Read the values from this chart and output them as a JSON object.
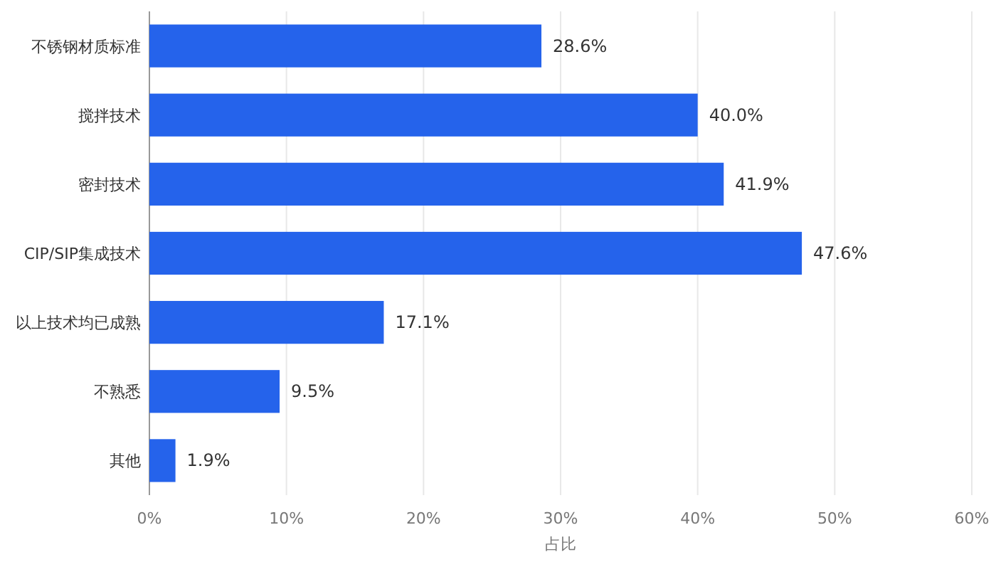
{
  "chart_data": {
    "type": "bar",
    "orientation": "horizontal",
    "categories": [
      "不锈钢材质标准",
      "搅拌技术",
      "密封技术",
      "CIP/SIP集成技术",
      "以上技术均已成熟",
      "不熟悉",
      "其他"
    ],
    "values": [
      28.6,
      40.0,
      41.9,
      47.6,
      17.1,
      9.5,
      1.9
    ],
    "value_labels": [
      "28.6%",
      "40.0%",
      "41.9%",
      "47.6%",
      "17.1%",
      "9.5%",
      "1.9%"
    ],
    "color": "#2563eb",
    "xlabel": "占比",
    "xlim": [
      0,
      60
    ],
    "xticks": [
      {
        "value": 0,
        "label": "0%"
      },
      {
        "value": 10,
        "label": "10%"
      },
      {
        "value": 20,
        "label": "20%"
      },
      {
        "value": 30,
        "label": "30%"
      },
      {
        "value": 40,
        "label": "40%"
      },
      {
        "value": 50,
        "label": "50%"
      },
      {
        "value": 60,
        "label": "60%"
      }
    ],
    "grid": "x"
  }
}
